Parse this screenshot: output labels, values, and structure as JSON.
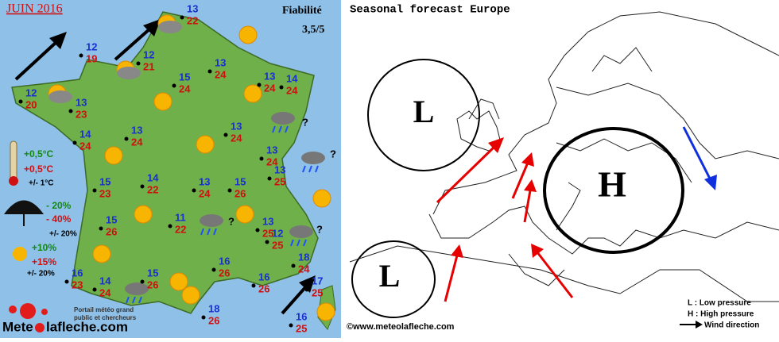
{
  "header": {
    "title": "JUIN 2016",
    "reliability_label": "Fiabilité",
    "reliability": "3,5/5"
  },
  "cities": [
    {
      "min": 13,
      "max": 22
    },
    {
      "min": 12,
      "max": 19
    },
    {
      "min": 12,
      "max": 21
    },
    {
      "min": 12,
      "max": 20
    },
    {
      "min": 13,
      "max": 23
    },
    {
      "min": 13,
      "max": 24
    },
    {
      "min": 15,
      "max": 24
    },
    {
      "min": 13,
      "max": 24
    },
    {
      "min": 14,
      "max": 24
    },
    {
      "min": 14,
      "max": 24
    },
    {
      "min": 13,
      "max": 24
    },
    {
      "min": 13,
      "max": 24
    },
    {
      "min": 13,
      "max": 24
    },
    {
      "min": 13,
      "max": 25
    },
    {
      "min": 15,
      "max": 23
    },
    {
      "min": 14,
      "max": 22
    },
    {
      "min": 13,
      "max": 24
    },
    {
      "min": 15,
      "max": 26
    },
    {
      "min": 15,
      "max": 26
    },
    {
      "min": 11,
      "max": 22
    },
    {
      "min": 13,
      "max": 25
    },
    {
      "min": 12,
      "max": 25
    },
    {
      "min": 16,
      "max": 23
    },
    {
      "min": 14,
      "max": 24
    },
    {
      "min": 15,
      "max": 26
    },
    {
      "min": 16,
      "max": 26
    },
    {
      "min": 16,
      "max": 26
    },
    {
      "min": 18,
      "max": 24
    },
    {
      "min": 17,
      "max": 25
    },
    {
      "min": 18,
      "max": 26
    },
    {
      "min": 16,
      "max": 25
    }
  ],
  "question_marks": [
    "?",
    "?",
    "?",
    "?"
  ],
  "legend": {
    "temperature": [
      "+0,5°C",
      "+0,5°C",
      "+/- 1°C"
    ],
    "precipitation": [
      "- 20%",
      "- 40%",
      "+/- 20%"
    ],
    "sunshine": [
      "+10%",
      "+15%",
      "+/- 20%"
    ]
  },
  "logo": {
    "prefix": "Mete",
    "suffix": "lafleche.com",
    "tagline": [
      "Portail météo grand",
      "public et chercheurs"
    ]
  },
  "europe": {
    "title": "Seasonal  forecast Europe",
    "pressure_systems": [
      "L",
      "L",
      "H"
    ],
    "legend": [
      "L : Low pressure",
      "H : High pressure",
      "Wind direction"
    ],
    "credit": "©www.meteolafleche.com"
  }
}
